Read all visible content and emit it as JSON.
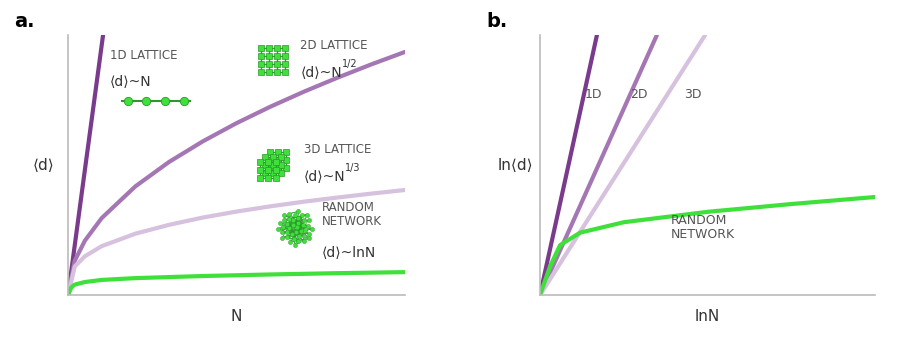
{
  "chart_data": [
    {
      "type": "line",
      "title": "a.",
      "x_label": "N",
      "y_label": "⟨d⟩",
      "xlim": [
        0,
        100
      ],
      "ylim": [
        0,
        100
      ],
      "tick_labels": false,
      "grid": false,
      "series": [
        {
          "name": "1D LATTICE",
          "annotation": "⟨d⟩~N",
          "color": "#7a3b8c",
          "x": [
            0,
            2,
            4,
            6,
            8,
            10.4
          ],
          "values": [
            0,
            19.2,
            38.5,
            57.7,
            76.9,
            100
          ]
        },
        {
          "name": "2D LATTICE",
          "annotation": "⟨d⟩~N",
          "annotation_exponent": "1/2",
          "color": "#a477b4",
          "x": [
            0,
            2,
            5,
            10,
            20,
            30,
            40,
            50,
            60,
            70,
            80,
            90,
            100
          ],
          "values": [
            0,
            13.2,
            20.9,
            29.6,
            41.8,
            51.2,
            59.1,
            66.1,
            72.4,
            78.2,
            83.6,
            88.7,
            93.5
          ]
        },
        {
          "name": "3D LATTICE",
          "annotation": "⟨d⟩~N",
          "annotation_exponent": "1/3",
          "color": "#d6c1de",
          "x": [
            0,
            2,
            5,
            10,
            20,
            30,
            40,
            50,
            60,
            70,
            80,
            90,
            100
          ],
          "values": [
            0,
            11.0,
            14.9,
            18.8,
            23.6,
            27.0,
            29.8,
            32.1,
            34.1,
            35.9,
            37.5,
            39.0,
            40.4
          ]
        },
        {
          "name": "RANDOM\nNETWORK",
          "annotation": "⟨d⟩~lnN",
          "color": "#3fe03a",
          "x": [
            0,
            1,
            2,
            5,
            10,
            20,
            40,
            60,
            80,
            100
          ],
          "values": [
            0,
            3,
            4,
            5,
            5.8,
            6.5,
            7.3,
            7.9,
            8.4,
            8.8
          ]
        }
      ]
    },
    {
      "type": "line",
      "title": "b.",
      "x_label": "lnN",
      "y_label": "ln⟨d⟩",
      "xlim": [
        0,
        100
      ],
      "ylim": [
        0,
        100
      ],
      "tick_labels": false,
      "grid": false,
      "series": [
        {
          "name": "1D",
          "color": "#7a3b8c",
          "x": [
            0,
            17
          ],
          "values": [
            0,
            100
          ]
        },
        {
          "name": "2D",
          "color": "#a477b4",
          "x": [
            0,
            34.9
          ],
          "values": [
            0,
            100
          ]
        },
        {
          "name": "3D",
          "color": "#d6c1de",
          "x": [
            0,
            49.3
          ],
          "values": [
            0,
            100
          ]
        },
        {
          "name": "RANDOM\nNETWORK",
          "color": "#3fe03a",
          "x": [
            0,
            3,
            6,
            12,
            25,
            50,
            75,
            100
          ],
          "values": [
            0,
            11,
            19.2,
            24,
            28,
            32,
            35,
            37.7
          ]
        }
      ]
    }
  ]
}
